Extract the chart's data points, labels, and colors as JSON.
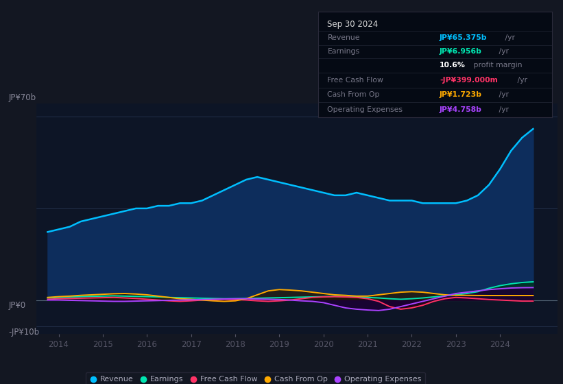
{
  "background_color": "#131722",
  "plot_bg_color": "#0d1526",
  "title": "Sep 30 2024",
  "y_label_top": "JP¥70b",
  "y_label_zero": "JP¥0",
  "y_label_bottom": "-JP¥10b",
  "ylim": [
    -13,
    75
  ],
  "xlim": [
    2013.5,
    2025.3
  ],
  "x_ticks": [
    2014,
    2015,
    2016,
    2017,
    2018,
    2019,
    2020,
    2021,
    2022,
    2023,
    2024
  ],
  "series": {
    "Revenue": {
      "color": "#00bfff",
      "fill_color": "#0a2a5e",
      "values_x": [
        2013.75,
        2014.0,
        2014.25,
        2014.5,
        2014.75,
        2015.0,
        2015.25,
        2015.5,
        2015.75,
        2016.0,
        2016.25,
        2016.5,
        2016.75,
        2017.0,
        2017.25,
        2017.5,
        2017.75,
        2018.0,
        2018.25,
        2018.5,
        2018.75,
        2019.0,
        2019.25,
        2019.5,
        2019.75,
        2020.0,
        2020.25,
        2020.5,
        2020.75,
        2021.0,
        2021.25,
        2021.5,
        2021.75,
        2022.0,
        2022.25,
        2022.5,
        2022.75,
        2023.0,
        2023.25,
        2023.5,
        2023.75,
        2024.0,
        2024.25,
        2024.5,
        2024.75
      ],
      "values_y": [
        26,
        27,
        28,
        30,
        31,
        32,
        33,
        34,
        35,
        35,
        36,
        36,
        37,
        37,
        38,
        40,
        42,
        44,
        46,
        47,
        46,
        45,
        44,
        43,
        42,
        41,
        40,
        40,
        41,
        40,
        39,
        38,
        38,
        38,
        37,
        37,
        37,
        37,
        38,
        40,
        44,
        50,
        57,
        62,
        65.375
      ]
    },
    "Earnings": {
      "color": "#00e5b0",
      "fill_color": "#003322",
      "values_x": [
        2013.75,
        2014.0,
        2014.25,
        2014.5,
        2014.75,
        2015.0,
        2015.25,
        2015.5,
        2015.75,
        2016.0,
        2016.25,
        2016.5,
        2016.75,
        2017.0,
        2017.25,
        2017.5,
        2017.75,
        2018.0,
        2018.25,
        2018.5,
        2018.75,
        2019.0,
        2019.25,
        2019.5,
        2019.75,
        2020.0,
        2020.25,
        2020.5,
        2020.75,
        2021.0,
        2021.25,
        2021.5,
        2021.75,
        2022.0,
        2022.25,
        2022.5,
        2022.75,
        2023.0,
        2023.25,
        2023.5,
        2023.75,
        2024.0,
        2024.25,
        2024.5,
        2024.75
      ],
      "values_y": [
        0.8,
        1.0,
        1.2,
        1.3,
        1.4,
        1.5,
        1.6,
        1.5,
        1.4,
        1.3,
        1.2,
        1.0,
        0.9,
        0.8,
        0.7,
        0.6,
        0.5,
        0.5,
        0.6,
        0.7,
        0.8,
        0.9,
        1.0,
        1.1,
        1.2,
        1.3,
        1.4,
        1.3,
        1.2,
        1.0,
        0.8,
        0.5,
        0.3,
        0.5,
        0.8,
        1.2,
        1.6,
        2.0,
        2.5,
        3.2,
        4.5,
        5.5,
        6.2,
        6.7,
        6.956
      ]
    },
    "FreeCashFlow": {
      "color": "#ff3366",
      "fill_color": "#330011",
      "values_x": [
        2013.75,
        2014.0,
        2014.25,
        2014.5,
        2014.75,
        2015.0,
        2015.25,
        2015.5,
        2015.75,
        2016.0,
        2016.25,
        2016.5,
        2016.75,
        2017.0,
        2017.25,
        2017.5,
        2017.75,
        2018.0,
        2018.25,
        2018.5,
        2018.75,
        2019.0,
        2019.25,
        2019.5,
        2019.75,
        2020.0,
        2020.25,
        2020.5,
        2020.75,
        2021.0,
        2021.25,
        2021.5,
        2021.75,
        2022.0,
        2022.25,
        2022.5,
        2022.75,
        2023.0,
        2023.25,
        2023.5,
        2023.75,
        2024.0,
        2024.25,
        2024.5,
        2024.75
      ],
      "values_y": [
        0.3,
        0.5,
        0.6,
        0.7,
        0.8,
        0.9,
        1.0,
        0.8,
        0.6,
        0.3,
        0.0,
        -0.3,
        -0.5,
        -0.3,
        0.0,
        0.2,
        0.3,
        0.2,
        0.0,
        -0.3,
        -0.5,
        -0.3,
        0.0,
        0.5,
        1.0,
        1.2,
        1.3,
        1.2,
        1.0,
        0.5,
        -0.5,
        -2.5,
        -3.5,
        -3.0,
        -2.0,
        -0.5,
        0.5,
        1.0,
        0.8,
        0.5,
        0.2,
        0.0,
        -0.2,
        -0.4,
        -0.399
      ]
    },
    "CashFromOp": {
      "color": "#ffaa00",
      "fill_color": "#332200",
      "values_x": [
        2013.75,
        2014.0,
        2014.25,
        2014.5,
        2014.75,
        2015.0,
        2015.25,
        2015.5,
        2015.75,
        2016.0,
        2016.25,
        2016.5,
        2016.75,
        2017.0,
        2017.25,
        2017.5,
        2017.75,
        2018.0,
        2018.25,
        2018.5,
        2018.75,
        2019.0,
        2019.25,
        2019.5,
        2019.75,
        2020.0,
        2020.25,
        2020.5,
        2020.75,
        2021.0,
        2021.25,
        2021.5,
        2021.75,
        2022.0,
        2022.25,
        2022.5,
        2022.75,
        2023.0,
        2023.25,
        2023.5,
        2023.75,
        2024.0,
        2024.25,
        2024.5,
        2024.75
      ],
      "values_y": [
        1.0,
        1.3,
        1.5,
        1.8,
        2.0,
        2.2,
        2.4,
        2.5,
        2.3,
        2.0,
        1.5,
        1.0,
        0.5,
        0.3,
        0.0,
        -0.3,
        -0.5,
        -0.3,
        0.5,
        2.0,
        3.5,
        4.0,
        3.8,
        3.5,
        3.0,
        2.5,
        2.0,
        1.8,
        1.5,
        1.5,
        2.0,
        2.5,
        3.0,
        3.2,
        3.0,
        2.5,
        2.0,
        1.8,
        1.8,
        1.75,
        1.73,
        1.72,
        1.72,
        1.72,
        1.723
      ]
    },
    "OperatingExpenses": {
      "color": "#aa44ff",
      "fill_color": "#1a0033",
      "values_x": [
        2013.75,
        2014.0,
        2014.25,
        2014.5,
        2014.75,
        2015.0,
        2015.25,
        2015.5,
        2015.75,
        2016.0,
        2016.25,
        2016.5,
        2016.75,
        2017.0,
        2017.25,
        2017.5,
        2017.75,
        2018.0,
        2018.25,
        2018.5,
        2018.75,
        2019.0,
        2019.25,
        2019.5,
        2019.75,
        2020.0,
        2020.25,
        2020.5,
        2020.75,
        2021.0,
        2021.25,
        2021.5,
        2021.75,
        2022.0,
        2022.25,
        2022.5,
        2022.75,
        2023.0,
        2023.25,
        2023.5,
        2023.75,
        2024.0,
        2024.25,
        2024.5,
        2024.75
      ],
      "values_y": [
        0.0,
        0.0,
        -0.1,
        -0.2,
        -0.3,
        -0.4,
        -0.5,
        -0.5,
        -0.4,
        -0.3,
        -0.2,
        -0.1,
        0.0,
        0.1,
        0.2,
        0.3,
        0.4,
        0.5,
        0.5,
        0.4,
        0.3,
        0.2,
        0.0,
        -0.3,
        -0.5,
        -1.0,
        -2.0,
        -3.0,
        -3.5,
        -3.8,
        -4.0,
        -3.5,
        -2.5,
        -1.5,
        -0.5,
        0.5,
        1.5,
        2.5,
        3.0,
        3.5,
        4.0,
        4.3,
        4.6,
        4.72,
        4.758
      ]
    }
  },
  "info_box": {
    "title": "Sep 30 2024",
    "items": [
      {
        "label": "Revenue",
        "value": "JP¥65.375b",
        "unit": " /yr",
        "value_color": "#00bfff"
      },
      {
        "label": "Earnings",
        "value": "JP¥6.956b",
        "unit": " /yr",
        "value_color": "#00e5b0"
      },
      {
        "label": "",
        "value": "10.6%",
        "unit": " profit margin",
        "value_color": "#ffffff"
      },
      {
        "label": "Free Cash Flow",
        "value": "-JP¥399.000m",
        "unit": " /yr",
        "value_color": "#ff3366"
      },
      {
        "label": "Cash From Op",
        "value": "JP¥1.723b",
        "unit": " /yr",
        "value_color": "#ffaa00"
      },
      {
        "label": "Operating Expenses",
        "value": "JP¥4.758b",
        "unit": " /yr",
        "value_color": "#aa44ff"
      }
    ]
  },
  "legend_items": [
    {
      "label": "Revenue",
      "color": "#00bfff"
    },
    {
      "label": "Earnings",
      "color": "#00e5b0"
    },
    {
      "label": "Free Cash Flow",
      "color": "#ff3366"
    },
    {
      "label": "Cash From Op",
      "color": "#ffaa00"
    },
    {
      "label": "Operating Expenses",
      "color": "#aa44ff"
    }
  ]
}
